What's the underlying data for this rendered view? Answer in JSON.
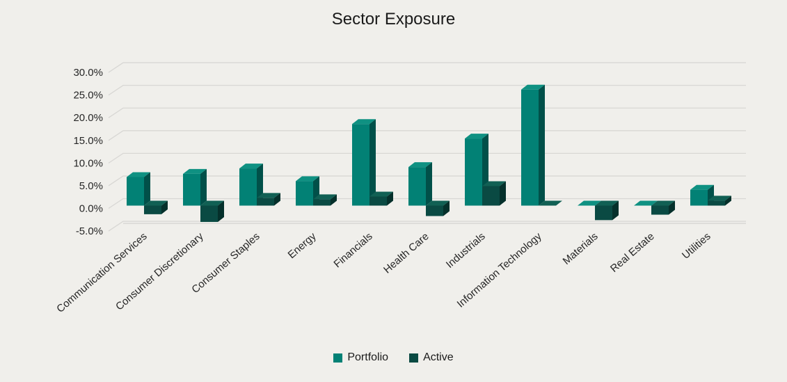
{
  "chart_data": {
    "type": "bar",
    "variant": "3d-clustered-column",
    "title": "Sector Exposure",
    "categories": [
      "Communication Services",
      "Consumer Discretionary",
      "Consumer Staples",
      "Energy",
      "Financials",
      "Health Care",
      "Industrials",
      "Information Technology",
      "Materials",
      "Real Estate",
      "Utilities"
    ],
    "series": [
      {
        "name": "Portfolio",
        "values": [
          6.3,
          7.0,
          8.2,
          5.4,
          18.0,
          8.5,
          14.8,
          25.6,
          0.0,
          0.0,
          3.5
        ],
        "color": "#028175",
        "color_top": "#0f9182",
        "color_side": "#015049"
      },
      {
        "name": "Active",
        "values": [
          -1.9,
          -3.6,
          1.7,
          1.4,
          2.0,
          -2.3,
          4.3,
          0.0,
          -3.2,
          -2.0,
          1.1
        ],
        "color": "#0a4a43",
        "color_top": "#116054",
        "color_side": "#05302b"
      }
    ],
    "y_axis": {
      "min": -5,
      "max": 30,
      "step": 5,
      "tick_labels": [
        "30.0%",
        "25.0%",
        "20.0%",
        "15.0%",
        "10.0%",
        "5.0%",
        "0.0%",
        "-5.0%"
      ],
      "format": "percent_one_decimal"
    },
    "grid": true,
    "legend_position": "bottom",
    "background_color": "#f0efeb",
    "gridline_color": "#d8d7d4",
    "axis_text_color": "#262626",
    "title_color": "#1a1a1a"
  }
}
